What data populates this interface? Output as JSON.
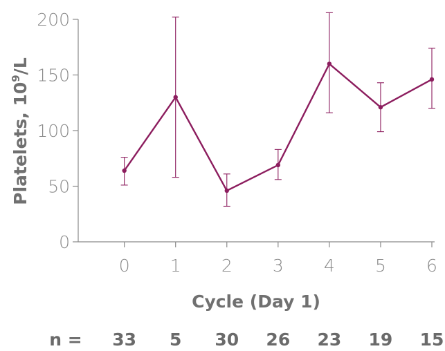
{
  "chart_data": {
    "type": "line",
    "xlabel": "Cycle (Day 1)",
    "ylabel_main": "Platelets, 10",
    "ylabel_sup": "9",
    "ylabel_unit": "/L",
    "x": [
      0,
      1,
      2,
      3,
      4,
      5,
      6
    ],
    "x_ticks": [
      "0",
      "1",
      "2",
      "3",
      "4",
      "5",
      "6"
    ],
    "y_ticks": [
      "0",
      "50",
      "100",
      "150",
      "200"
    ],
    "ylim": [
      0,
      200
    ],
    "xlim": [
      -0.9,
      6
    ],
    "series": [
      {
        "values": [
          64,
          130,
          46,
          69,
          160,
          121,
          146
        ],
        "error_low": [
          51,
          58,
          32,
          56,
          116,
          99,
          120
        ],
        "error_high": [
          76,
          202,
          61,
          83,
          206,
          143,
          174
        ],
        "color": "#8c1d5e"
      }
    ],
    "grid": false,
    "n_label": "n =",
    "n_values": [
      "33",
      "5",
      "30",
      "26",
      "23",
      "19",
      "15"
    ]
  },
  "colors": {
    "series": "#8c1d5e",
    "axis": "#8a8a8a"
  }
}
